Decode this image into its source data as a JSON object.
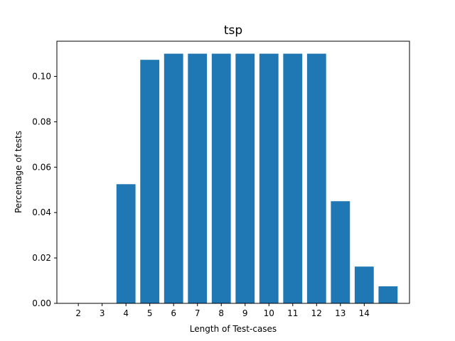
{
  "chart_data": {
    "type": "bar",
    "title": "tsp",
    "xlabel": "Length of Test-cases",
    "ylabel": "Percentage of tests",
    "x_tick_labels": [
      "2",
      "3",
      "4",
      "5",
      "6",
      "7",
      "8",
      "9",
      "10",
      "11",
      "12",
      "13",
      "14"
    ],
    "bar_positions": [
      2,
      3,
      4,
      5,
      6,
      7,
      8,
      9,
      10,
      11,
      12,
      13,
      14,
      15
    ],
    "values": [
      0.0,
      0.0,
      0.0525,
      0.1073,
      0.11,
      0.11,
      0.11,
      0.11,
      0.11,
      0.11,
      0.11,
      0.045,
      0.0162,
      0.0075
    ],
    "xlim": [
      1.1,
      15.9
    ],
    "ylim": [
      0,
      0.1155
    ],
    "y_ticks": [
      0.0,
      0.02,
      0.04,
      0.06,
      0.08,
      0.1
    ],
    "y_tick_labels": [
      "0.00",
      "0.02",
      "0.04",
      "0.06",
      "0.08",
      "0.10"
    ],
    "bar_color": "#1f77b4",
    "grid": false
  }
}
